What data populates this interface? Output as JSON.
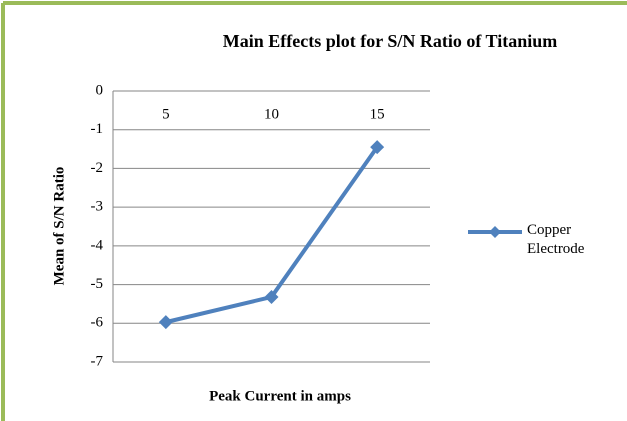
{
  "chart_data": {
    "type": "line",
    "title": "Main Effects plot for S/N Ratio of Titanium",
    "x_label": "Peak Current in amps",
    "y_label": "Mean of S/N Ratio",
    "categories": [
      "5",
      "10",
      "15"
    ],
    "series": [
      {
        "name": "Copper Electrode",
        "color": "#4f81bd",
        "values": [
          -5.97,
          -5.32,
          -1.45
        ]
      }
    ],
    "ylim": [
      -7,
      0
    ],
    "yticks": [
      0,
      -1,
      -2,
      -3,
      -4,
      -5,
      -6,
      -7
    ],
    "grid": true,
    "legend": "right"
  }
}
